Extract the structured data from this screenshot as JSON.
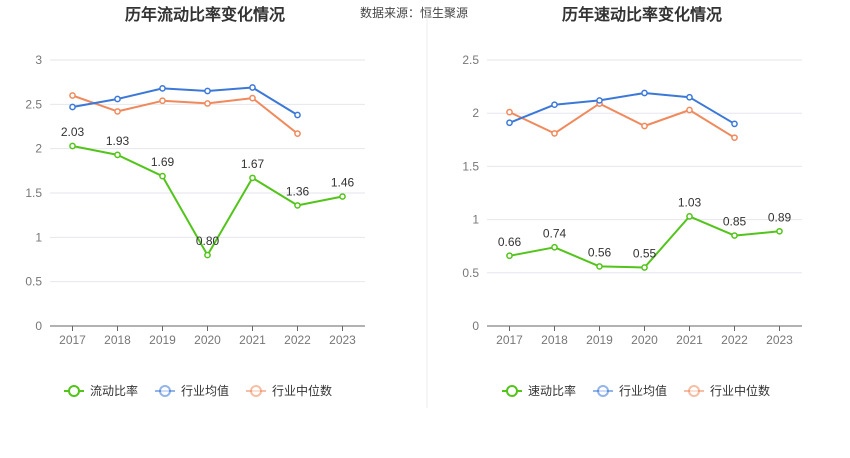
{
  "source": "数据来源：恒生聚源",
  "chart_data": [
    {
      "type": "line",
      "title": "历年流动比率变化情况",
      "categories": [
        "2017",
        "2018",
        "2019",
        "2020",
        "2021",
        "2022",
        "2023"
      ],
      "ylim": [
        0,
        3
      ],
      "yticks": [
        "0",
        "0.5",
        "1",
        "1.5",
        "2",
        "2.5",
        "3"
      ],
      "grid": true,
      "legend_position": "bottom",
      "series": [
        {
          "name": "流动比率",
          "color": "#52c41a",
          "labels": true,
          "values": [
            2.03,
            1.93,
            1.69,
            0.8,
            1.67,
            1.36,
            1.46
          ],
          "value_labels": [
            "2.03",
            "1.93",
            "1.69",
            "0.80",
            "1.67",
            "1.36",
            "1.46"
          ]
        },
        {
          "name": "行业均值",
          "color": "#3b78d8",
          "labels": false,
          "values": [
            2.47,
            2.56,
            2.68,
            2.65,
            2.69,
            2.38,
            null
          ]
        },
        {
          "name": "行业中位数",
          "color": "#f08a5d",
          "labels": false,
          "values": [
            2.6,
            2.42,
            2.54,
            2.51,
            2.57,
            2.17,
            null
          ]
        }
      ]
    },
    {
      "type": "line",
      "title": "历年速动比率变化情况",
      "categories": [
        "2017",
        "2018",
        "2019",
        "2020",
        "2021",
        "2022",
        "2023"
      ],
      "ylim": [
        0,
        2.5
      ],
      "yticks": [
        "0",
        "0.5",
        "1",
        "1.5",
        "2",
        "2.5"
      ],
      "grid": true,
      "legend_position": "bottom",
      "series": [
        {
          "name": "速动比率",
          "color": "#52c41a",
          "labels": true,
          "values": [
            0.66,
            0.74,
            0.56,
            0.55,
            1.03,
            0.85,
            0.89
          ],
          "value_labels": [
            "0.66",
            "0.74",
            "0.56",
            "0.55",
            "1.03",
            "0.85",
            "0.89"
          ]
        },
        {
          "name": "行业均值",
          "color": "#3b78d8",
          "labels": false,
          "values": [
            1.91,
            2.08,
            2.12,
            2.19,
            2.15,
            1.9,
            null
          ]
        },
        {
          "name": "行业中位数",
          "color": "#f08a5d",
          "labels": false,
          "values": [
            2.01,
            1.81,
            2.09,
            1.88,
            2.03,
            1.77,
            null
          ]
        }
      ]
    }
  ]
}
